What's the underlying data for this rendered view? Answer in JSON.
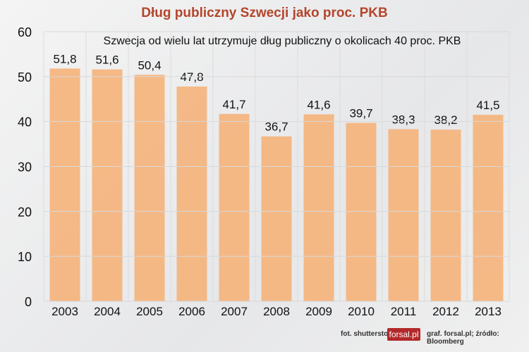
{
  "chart_data": {
    "type": "bar",
    "title": "Dług publiczny Szwecji jako proc. PKB",
    "subtitle": "Szwecja od wielu lat utrzymuje dług publiczny o okolicach 40 proc. PKB",
    "categories": [
      "2003",
      "2004",
      "2005",
      "2006",
      "2007",
      "2008",
      "2009",
      "2010",
      "2011",
      "2012",
      "2013"
    ],
    "values": [
      51.8,
      51.6,
      50.4,
      47.8,
      41.7,
      36.7,
      41.6,
      39.7,
      38.3,
      38.2,
      41.5
    ],
    "labels": [
      "51,8",
      "51,6",
      "50,4",
      "47,8",
      "41,7",
      "36,7",
      "41,6",
      "39,7",
      "38,3",
      "38,2",
      "41,5"
    ],
    "ylim": [
      0,
      60
    ],
    "yticks": [
      0,
      10,
      20,
      30,
      40,
      50,
      60
    ],
    "grid": true,
    "bar_color": "#f5b27a"
  },
  "footer": {
    "photo": "fot. shutterstock",
    "logo": "forsal.pl",
    "credit": "graf. forsal.pl;  źródło: Bloomberg"
  }
}
